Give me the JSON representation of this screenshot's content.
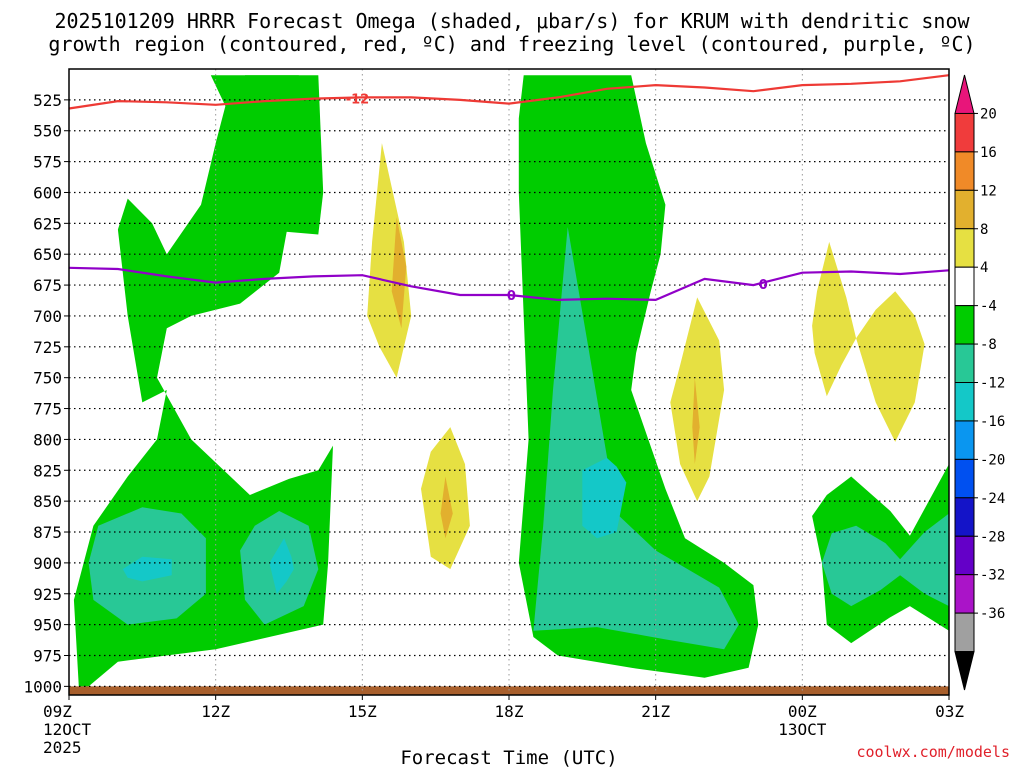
{
  "chart_data": {
    "type": "contour",
    "title_line1": "2025101209 HRRR Forecast Omega (shaded, μbar/s) for KRUM with dendritic snow",
    "title_line2": "growth region (contoured, red, ºC) and freezing level (contoured, purple, ºC)",
    "xlabel": "Forecast Time (UTC)",
    "credit": "coolwx.com/models",
    "x_unit": "hours since 09Z 12OCT 2025",
    "x_range": [
      0,
      18
    ],
    "x_ticks": [
      {
        "hour": 0,
        "label": "09Z",
        "sub1": "12OCT",
        "sub2": "2025"
      },
      {
        "hour": 3,
        "label": "12Z",
        "sub1": "",
        "sub2": ""
      },
      {
        "hour": 6,
        "label": "15Z",
        "sub1": "",
        "sub2": ""
      },
      {
        "hour": 9,
        "label": "18Z",
        "sub1": "",
        "sub2": ""
      },
      {
        "hour": 12,
        "label": "21Z",
        "sub1": "",
        "sub2": ""
      },
      {
        "hour": 15,
        "label": "00Z",
        "sub1": "13OCT",
        "sub2": ""
      },
      {
        "hour": 18,
        "label": "03Z",
        "sub1": "",
        "sub2": ""
      }
    ],
    "y_unit": "hPa",
    "y_range": [
      1007,
      500
    ],
    "y_ticks": [
      "525",
      "550",
      "575",
      "600",
      "625",
      "650",
      "675",
      "700",
      "725",
      "750",
      "775",
      "800",
      "825",
      "850",
      "875",
      "900",
      "925",
      "950",
      "975",
      "1000"
    ],
    "colorbar": {
      "levels": [
        "20",
        "16",
        "12",
        "8",
        "4",
        "-4",
        "-8",
        "-12",
        "-16",
        "-20",
        "-24",
        "-28",
        "-32",
        "-36"
      ],
      "colors": [
        "#e8157a",
        "#f03c3c",
        "#f08a28",
        "#e2b02e",
        "#e6e042",
        "#ffffff",
        "#00cc00",
        "#28c896",
        "#14c8c8",
        "#0a96f0",
        "#0050f0",
        "#1414c8",
        "#6400c8",
        "#aa14c8",
        "#a0a0a0",
        "#000000"
      ]
    },
    "contours": [
      {
        "name": "Dendritic snow growth (-12C)",
        "label": "-12",
        "color": "#ee3a35",
        "points": [
          [
            0,
            532
          ],
          [
            1,
            526
          ],
          [
            2,
            527
          ],
          [
            3,
            529
          ],
          [
            4,
            526
          ],
          [
            5,
            524
          ],
          [
            6,
            523
          ],
          [
            7,
            523
          ],
          [
            8,
            525
          ],
          [
            9,
            528
          ],
          [
            10,
            523
          ],
          [
            11,
            516
          ],
          [
            12,
            513
          ],
          [
            13,
            515
          ],
          [
            14,
            518
          ],
          [
            15,
            513
          ],
          [
            16,
            512
          ],
          [
            17,
            510
          ],
          [
            18,
            505
          ]
        ]
      },
      {
        "name": "Freezing level (0C)",
        "label": "0",
        "color": "#9000c8",
        "points": [
          [
            0,
            661
          ],
          [
            1,
            662
          ],
          [
            2,
            668
          ],
          [
            3,
            673
          ],
          [
            4,
            670
          ],
          [
            5,
            668
          ],
          [
            6,
            667
          ],
          [
            7,
            676
          ],
          [
            8,
            683
          ],
          [
            9,
            683
          ],
          [
            10,
            687
          ],
          [
            11,
            686
          ],
          [
            12,
            687
          ],
          [
            13,
            670
          ],
          [
            14,
            675
          ],
          [
            15,
            665
          ],
          [
            16,
            664
          ],
          [
            17,
            666
          ],
          [
            18,
            663
          ]
        ]
      }
    ],
    "shaded_regions": [
      {
        "name": "green-left-main",
        "fill": "#00cc00",
        "points": [
          [
            0.2,
            1000
          ],
          [
            0.1,
            930
          ],
          [
            0.5,
            870
          ],
          [
            1.2,
            830
          ],
          [
            1.8,
            800
          ],
          [
            2,
            760
          ],
          [
            1.5,
            770
          ],
          [
            1.2,
            700
          ],
          [
            1,
            630
          ],
          [
            1.2,
            605
          ],
          [
            1.7,
            625
          ],
          [
            2,
            650
          ],
          [
            2.7,
            610
          ],
          [
            3,
            560
          ],
          [
            3.2,
            530
          ],
          [
            2.9,
            505
          ],
          [
            4,
            505
          ],
          [
            4.7,
            505
          ],
          [
            4.8,
            530
          ],
          [
            4.6,
            600
          ],
          [
            4.3,
            665
          ],
          [
            3.5,
            690
          ],
          [
            2.5,
            700
          ],
          [
            2,
            710
          ],
          [
            1.8,
            750
          ],
          [
            2.5,
            800
          ],
          [
            3.7,
            845
          ],
          [
            4.5,
            832
          ],
          [
            5.1,
            825
          ],
          [
            5.4,
            805
          ],
          [
            5.3,
            900
          ],
          [
            5.2,
            950
          ],
          [
            3,
            970
          ],
          [
            1,
            980
          ],
          [
            0.4,
            1000
          ]
        ]
      },
      {
        "name": "green-upper-bar",
        "fill": "#00cc00",
        "points": [
          [
            3.6,
            505
          ],
          [
            5.1,
            505
          ],
          [
            5.2,
            600
          ],
          [
            5.1,
            634
          ],
          [
            4.2,
            631
          ],
          [
            3.9,
            600
          ],
          [
            3.6,
            560
          ]
        ]
      },
      {
        "name": "green-center-column",
        "fill": "#00cc00",
        "points": [
          [
            9.3,
            505
          ],
          [
            11.5,
            505
          ],
          [
            11.8,
            560
          ],
          [
            12.2,
            610
          ],
          [
            12.1,
            650
          ],
          [
            11.9,
            680
          ],
          [
            11.6,
            730
          ],
          [
            11.5,
            760
          ],
          [
            12.2,
            840
          ],
          [
            12.6,
            880
          ],
          [
            13.4,
            900
          ],
          [
            14,
            918
          ],
          [
            14.1,
            950
          ],
          [
            13.9,
            985
          ],
          [
            13,
            993
          ],
          [
            11.5,
            985
          ],
          [
            10,
            975
          ],
          [
            9.5,
            960
          ],
          [
            9.2,
            900
          ],
          [
            9.4,
            800
          ],
          [
            9.3,
            700
          ],
          [
            9.2,
            600
          ],
          [
            9.2,
            540
          ]
        ]
      },
      {
        "name": "green-right",
        "fill": "#00cc00",
        "points": [
          [
            15.2,
            862
          ],
          [
            15.5,
            845
          ],
          [
            16,
            830
          ],
          [
            16.8,
            858
          ],
          [
            17.2,
            878
          ],
          [
            18,
            820
          ],
          [
            18,
            955
          ],
          [
            17.2,
            935
          ],
          [
            16.8,
            944
          ],
          [
            16,
            965
          ],
          [
            15.5,
            950
          ],
          [
            15.4,
            900
          ]
        ]
      },
      {
        "name": "teal-left",
        "fill": "#28c896",
        "points": [
          [
            0.4,
            900
          ],
          [
            0.6,
            870
          ],
          [
            1.5,
            855
          ],
          [
            2.3,
            860
          ],
          [
            2.8,
            880
          ],
          [
            2.8,
            925
          ],
          [
            2.2,
            945
          ],
          [
            1.2,
            950
          ],
          [
            0.5,
            930
          ]
        ]
      },
      {
        "name": "teal-mid",
        "fill": "#28c896",
        "points": [
          [
            3.5,
            890
          ],
          [
            3.8,
            870
          ],
          [
            4.3,
            858
          ],
          [
            4.9,
            870
          ],
          [
            5.1,
            905
          ],
          [
            4.8,
            935
          ],
          [
            4,
            950
          ],
          [
            3.6,
            930
          ]
        ]
      },
      {
        "name": "teal-center",
        "fill": "#28c896",
        "points": [
          [
            9.5,
            955
          ],
          [
            9.7,
            870
          ],
          [
            9.9,
            760
          ],
          [
            10.2,
            628
          ],
          [
            10.6,
            720
          ],
          [
            10.9,
            790
          ],
          [
            11.2,
            860
          ],
          [
            12,
            890
          ],
          [
            13.3,
            920
          ],
          [
            13.7,
            950
          ],
          [
            13.4,
            970
          ],
          [
            12.2,
            962
          ],
          [
            10.8,
            952
          ]
        ]
      },
      {
        "name": "teal-right",
        "fill": "#28c896",
        "points": [
          [
            15.4,
            900
          ],
          [
            15.6,
            876
          ],
          [
            16.1,
            870
          ],
          [
            16.7,
            884
          ],
          [
            17,
            897
          ],
          [
            17.5,
            875
          ],
          [
            18,
            860
          ],
          [
            18,
            935
          ],
          [
            17.5,
            925
          ],
          [
            17,
            910
          ],
          [
            16.6,
            922
          ],
          [
            16,
            935
          ],
          [
            15.6,
            925
          ]
        ]
      },
      {
        "name": "cyan-left",
        "fill": "#14c8c8",
        "points": [
          [
            1.1,
            905
          ],
          [
            1.5,
            895
          ],
          [
            2.1,
            897
          ],
          [
            2.1,
            910
          ],
          [
            1.5,
            915
          ],
          [
            1.2,
            912
          ]
        ]
      },
      {
        "name": "cyan-mid",
        "fill": "#14c8c8",
        "points": [
          [
            4.1,
            900
          ],
          [
            4.25,
            890
          ],
          [
            4.4,
            880
          ],
          [
            4.55,
            895
          ],
          [
            4.6,
            905
          ],
          [
            4.45,
            915
          ],
          [
            4.25,
            925
          ]
        ]
      },
      {
        "name": "cyan-center",
        "fill": "#14c8c8",
        "points": [
          [
            10.5,
            825
          ],
          [
            11,
            815
          ],
          [
            11.2,
            822
          ],
          [
            11.4,
            835
          ],
          [
            11.2,
            875
          ],
          [
            10.8,
            880
          ],
          [
            10.5,
            870
          ]
        ]
      },
      {
        "name": "yellow-1",
        "fill": "#e6e042",
        "points": [
          [
            6.4,
            560
          ],
          [
            6.85,
            640
          ],
          [
            7,
            700
          ],
          [
            6.7,
            750
          ],
          [
            6.35,
            725
          ],
          [
            6.1,
            700
          ],
          [
            6.2,
            640
          ]
        ]
      },
      {
        "name": "yellow-2",
        "fill": "#e6e042",
        "points": [
          [
            7.2,
            840
          ],
          [
            7.4,
            810
          ],
          [
            7.8,
            790
          ],
          [
            8.1,
            820
          ],
          [
            8.2,
            870
          ],
          [
            7.8,
            905
          ],
          [
            7.4,
            895
          ]
        ]
      },
      {
        "name": "yellow-3",
        "fill": "#e6e042",
        "points": [
          [
            12.3,
            770
          ],
          [
            12.5,
            740
          ],
          [
            12.85,
            685
          ],
          [
            13.3,
            720
          ],
          [
            13.4,
            760
          ],
          [
            13.1,
            830
          ],
          [
            12.85,
            850
          ],
          [
            12.5,
            820
          ]
        ]
      },
      {
        "name": "yellow-4",
        "fill": "#e6e042",
        "points": [
          [
            15.2,
            708
          ],
          [
            15.3,
            680
          ],
          [
            15.55,
            640
          ],
          [
            15.9,
            685
          ],
          [
            16.1,
            718
          ],
          [
            15.8,
            740
          ],
          [
            15.5,
            765
          ],
          [
            15.25,
            730
          ]
        ]
      },
      {
        "name": "yellow-5",
        "fill": "#e6e042",
        "points": [
          [
            16.1,
            718
          ],
          [
            16.5,
            695
          ],
          [
            16.9,
            680
          ],
          [
            17.3,
            700
          ],
          [
            17.5,
            723
          ],
          [
            17.3,
            770
          ],
          [
            16.9,
            802
          ],
          [
            16.5,
            770
          ]
        ]
      },
      {
        "name": "orange-1",
        "fill": "#e2b02e",
        "points": [
          [
            6.7,
            620
          ],
          [
            6.9,
            660
          ],
          [
            6.8,
            710
          ],
          [
            6.6,
            680
          ]
        ]
      },
      {
        "name": "orange-2",
        "fill": "#e2b02e",
        "points": [
          [
            7.7,
            830
          ],
          [
            7.85,
            860
          ],
          [
            7.7,
            880
          ],
          [
            7.6,
            860
          ]
        ]
      },
      {
        "name": "orange-3",
        "fill": "#e2b02e",
        "points": [
          [
            12.8,
            750
          ],
          [
            12.9,
            790
          ],
          [
            12.8,
            820
          ],
          [
            12.75,
            790
          ]
        ]
      }
    ],
    "ground_band": {
      "color": "#a85f2c",
      "p_top": 1000,
      "p_bottom": 1007
    }
  }
}
